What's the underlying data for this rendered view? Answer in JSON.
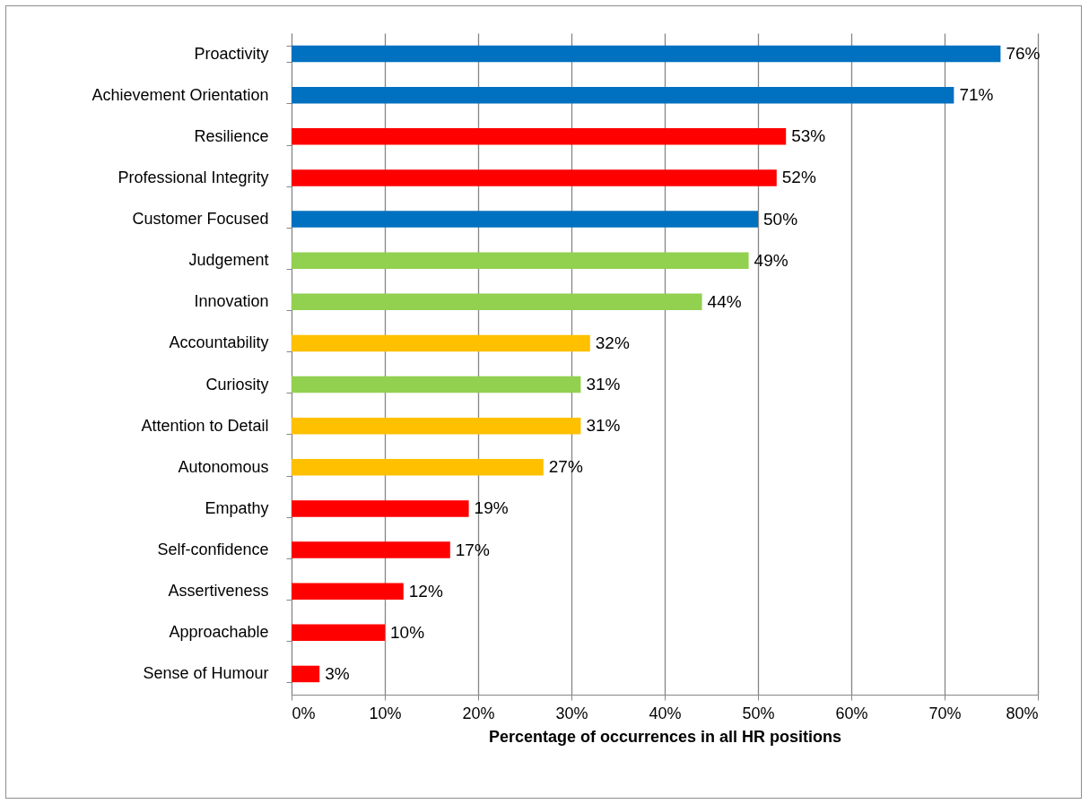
{
  "chart_data": {
    "type": "bar",
    "orientation": "horizontal",
    "categories": [
      "Proactivity",
      "Achievement Orientation",
      "Resilience",
      "Professional Integrity",
      "Customer Focused",
      "Judgement",
      "Innovation",
      "Accountability",
      "Curiosity",
      "Attention to Detail",
      "Autonomous",
      "Empathy",
      "Self-confidence",
      "Assertiveness",
      "Approachable",
      "Sense of Humour"
    ],
    "values": [
      76,
      71,
      53,
      52,
      50,
      49,
      44,
      32,
      31,
      31,
      27,
      19,
      17,
      12,
      10,
      3
    ],
    "value_labels": [
      "76%",
      "71%",
      "53%",
      "52%",
      "50%",
      "49%",
      "44%",
      "32%",
      "31%",
      "31%",
      "27%",
      "19%",
      "17%",
      "12%",
      "10%",
      "3%"
    ],
    "colors": [
      "#0070c0",
      "#0070c0",
      "#ff0000",
      "#ff0000",
      "#0070c0",
      "#92d050",
      "#92d050",
      "#ffc000",
      "#92d050",
      "#ffc000",
      "#ffc000",
      "#ff0000",
      "#ff0000",
      "#ff0000",
      "#ff0000",
      "#ff0000"
    ],
    "xlabel": "Percentage of occurrences in all HR positions",
    "xlim": [
      0,
      80
    ],
    "xticks": [
      {
        "value": 0,
        "label": "0%"
      },
      {
        "value": 10,
        "label": "10%"
      },
      {
        "value": 20,
        "label": "20%"
      },
      {
        "value": 30,
        "label": "30%"
      },
      {
        "value": 40,
        "label": "40%"
      },
      {
        "value": 50,
        "label": "50%"
      },
      {
        "value": 60,
        "label": "60%"
      },
      {
        "value": 70,
        "label": "70%"
      },
      {
        "value": 80,
        "label": "80%"
      }
    ],
    "grid": "x"
  }
}
